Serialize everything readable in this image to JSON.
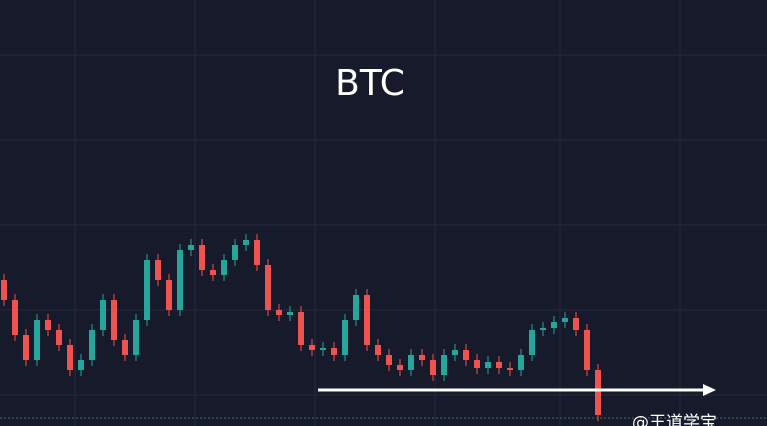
{
  "chart_data": {
    "type": "candlestick",
    "title": "BTC",
    "watermark": "@王道学宝",
    "up_color": "#26a69a",
    "down_color": "#ef5350",
    "ylim": [
      0,
      426
    ],
    "open": [
      146,
      126,
      91,
      66,
      106,
      96,
      81,
      56,
      66,
      96,
      126,
      86,
      71,
      106,
      166,
      146,
      116,
      176,
      181,
      156,
      151,
      166,
      181,
      186,
      161,
      116,
      111,
      114,
      81,
      76,
      78,
      71,
      106,
      131,
      81,
      71,
      61,
      56,
      71,
      66,
      51,
      71,
      76,
      66,
      58,
      64,
      58,
      56,
      71,
      96,
      98,
      104,
      108,
      96,
      56
    ],
    "close": [
      126,
      91,
      66,
      106,
      96,
      81,
      56,
      66,
      96,
      126,
      86,
      71,
      106,
      166,
      146,
      116,
      176,
      181,
      156,
      151,
      166,
      181,
      186,
      161,
      116,
      111,
      114,
      81,
      76,
      78,
      71,
      106,
      131,
      81,
      71,
      61,
      56,
      71,
      66,
      51,
      71,
      76,
      66,
      58,
      64,
      58,
      56,
      71,
      96,
      98,
      104,
      108,
      96,
      56,
      11
    ],
    "high": [
      152,
      132,
      97,
      112,
      112,
      102,
      87,
      72,
      102,
      132,
      132,
      92,
      112,
      172,
      172,
      152,
      182,
      187,
      187,
      162,
      172,
      187,
      192,
      192,
      167,
      122,
      120,
      120,
      87,
      84,
      84,
      112,
      137,
      137,
      87,
      77,
      67,
      77,
      77,
      72,
      77,
      82,
      82,
      72,
      70,
      70,
      64,
      77,
      102,
      104,
      110,
      114,
      114,
      102,
      62
    ],
    "low": [
      120,
      85,
      60,
      60,
      90,
      75,
      50,
      50,
      60,
      90,
      80,
      65,
      65,
      100,
      140,
      110,
      110,
      170,
      150,
      145,
      145,
      160,
      175,
      155,
      110,
      105,
      105,
      75,
      70,
      70,
      65,
      65,
      100,
      75,
      65,
      55,
      50,
      50,
      60,
      45,
      45,
      65,
      60,
      52,
      52,
      52,
      50,
      50,
      65,
      90,
      92,
      98,
      90,
      50,
      5
    ]
  }
}
